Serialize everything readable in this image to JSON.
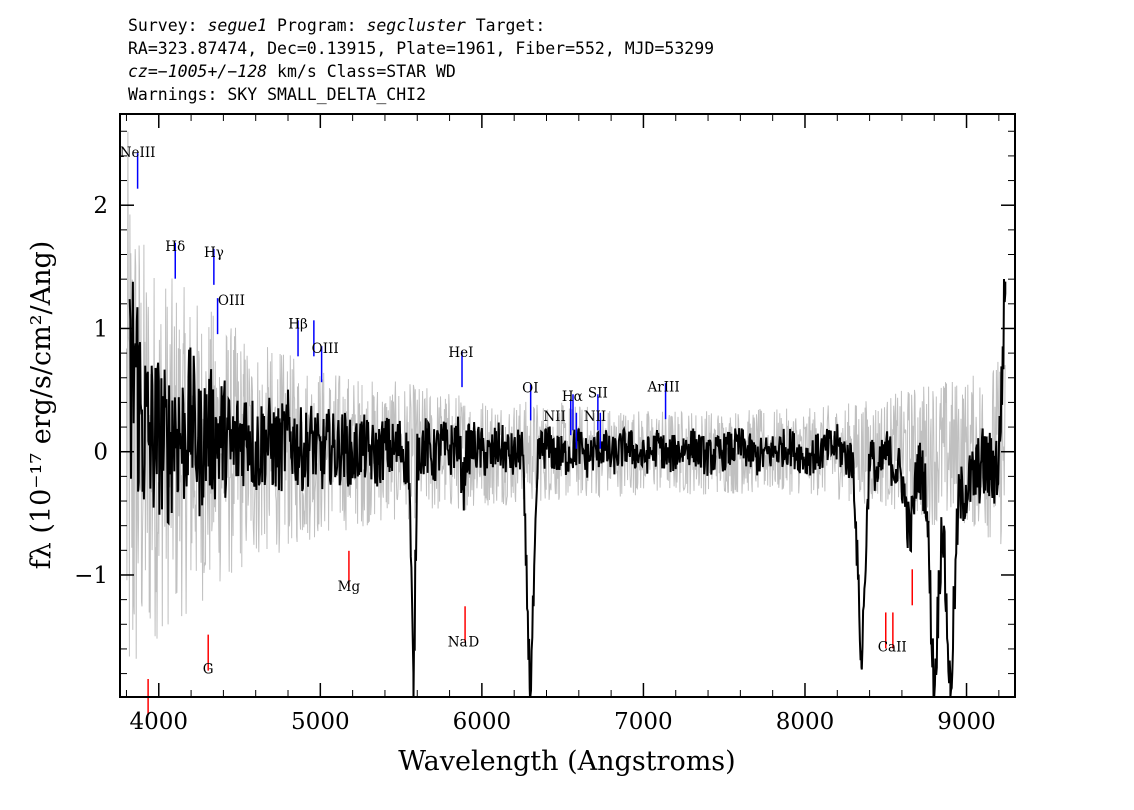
{
  "header": {
    "line1": {
      "survey_label": "Survey: ",
      "survey_value": "segue1",
      "program_label": " Program: ",
      "program_value": "segcluster",
      "target_label": " Target:"
    },
    "line2": "RA=323.87474, Dec=0.13915, Plate=1961, Fiber=552, MJD=53299",
    "line3": {
      "cz_value": "cz=−1005+/−128",
      "cz_unit": " km/s ",
      "class_text": "Class=STAR WD"
    },
    "line4": "Warnings: SKY SMALL_DELTA_CHI2"
  },
  "chart_data": {
    "type": "line",
    "xlabel": "Wavelength (Angstroms)",
    "ylabel": "fλ (10⁻¹⁷ erg/s/cm²/Ang)",
    "xlim": [
      3760,
      9300
    ],
    "ylim": [
      -1.99,
      2.74
    ],
    "x_ticks": [
      4000,
      5000,
      6000,
      7000,
      8000,
      9000
    ],
    "y_ticks": [
      -1,
      0,
      1,
      2
    ],
    "x_tick_labels": [
      "4000",
      "5000",
      "6000",
      "7000",
      "8000",
      "9000"
    ],
    "y_tick_labels": [
      "−1",
      "0",
      "1",
      "2"
    ],
    "grid": false,
    "colors": {
      "flux": "#000000",
      "error": "#c0c0c0",
      "emission": "#0000ff",
      "absorption": "#ff0000"
    },
    "series": [
      {
        "role": "flux",
        "x": [
          3820,
          3850,
          3880,
          3900,
          3950,
          4000,
          4050,
          4100,
          4150,
          4200,
          4250,
          4300,
          4350,
          4400,
          4450,
          4500,
          4550,
          4600,
          4650,
          4700,
          4750,
          4800,
          4850,
          4900,
          4950,
          5000,
          5050,
          5100,
          5150,
          5200,
          5250,
          5300,
          5350,
          5400,
          5450,
          5500,
          5550,
          5577,
          5600,
          5650,
          5700,
          5750,
          5800,
          5850,
          5890,
          5900,
          5950,
          6000,
          6050,
          6100,
          6150,
          6200,
          6250,
          6300,
          6350,
          6400,
          6450,
          6500,
          6550,
          6600,
          6650,
          6700,
          6750,
          6800,
          6850,
          6900,
          6950,
          7000,
          7050,
          7100,
          7150,
          7200,
          7300,
          7400,
          7500,
          7600,
          7700,
          7800,
          7900,
          8000,
          8100,
          8200,
          8300,
          8350,
          8400,
          8450,
          8500,
          8550,
          8600,
          8650,
          8700,
          8750,
          8800,
          8850,
          8900,
          8950,
          9000,
          9050,
          9100,
          9150,
          9200,
          9240
        ],
        "y": [
          0.3,
          0.8,
          0.4,
          0.2,
          0.1,
          0.15,
          0.0,
          0.2,
          0.1,
          0.3,
          0.0,
          0.2,
          0.1,
          0.15,
          0.0,
          0.1,
          0.2,
          0.0,
          0.1,
          0.05,
          0.0,
          0.15,
          0.05,
          0.0,
          0.1,
          -0.05,
          0.05,
          0.0,
          0.05,
          -0.05,
          0.05,
          0.0,
          -0.05,
          0.05,
          0.0,
          0.05,
          -0.1,
          -1.99,
          0.0,
          0.05,
          -0.05,
          0.05,
          0.0,
          0.1,
          -0.3,
          0.0,
          0.05,
          0.0,
          -0.05,
          0.05,
          0.0,
          -0.05,
          0.05,
          -1.99,
          0.0,
          0.05,
          0.0,
          -0.05,
          0.0,
          0.05,
          -0.05,
          0.0,
          0.05,
          -0.05,
          0.0,
          0.05,
          0.0,
          -0.05,
          0.0,
          0.05,
          -0.05,
          0.0,
          0.05,
          -0.05,
          0.0,
          0.05,
          -0.05,
          0.0,
          0.05,
          -0.05,
          0.0,
          0.05,
          -0.1,
          -1.75,
          0.0,
          -0.2,
          0.0,
          -0.1,
          -0.2,
          -0.7,
          -0.1,
          -0.3,
          -1.99,
          -0.5,
          -1.99,
          -0.4,
          -0.3,
          -0.2,
          -0.1,
          -0.15,
          -0.1,
          1.38
        ]
      },
      {
        "role": "error",
        "x": [
          3800,
          3900,
          4000,
          4200,
          4400,
          4600,
          4800,
          5000,
          5300,
          5600,
          6000,
          6500,
          7000,
          7500,
          8000,
          8500,
          8800,
          9000,
          9240
        ],
        "y": [
          2.7,
          1.8,
          1.5,
          1.3,
          1.1,
          0.9,
          0.8,
          0.7,
          0.6,
          0.55,
          0.45,
          0.4,
          0.35,
          0.35,
          0.35,
          0.45,
          0.6,
          0.6,
          0.8
        ]
      }
    ],
    "lines": [
      {
        "label": "NeIII",
        "wavelength": 3869,
        "kind": "emission",
        "y": 2.28
      },
      {
        "label": "Hδ",
        "wavelength": 4102,
        "kind": "emission",
        "y": 1.55
      },
      {
        "label": "Hγ",
        "wavelength": 4341,
        "kind": "emission",
        "y": 1.5
      },
      {
        "label": "OIII",
        "wavelength": 4364,
        "kind": "emission",
        "y": 1.1
      },
      {
        "label": "Hβ",
        "wavelength": 4862,
        "kind": "emission",
        "y": 0.92
      },
      {
        "label": "OIII",
        "wavelength": 4960,
        "kind": "emission",
        "y": 0.92
      },
      {
        "label": "OIII",
        "wavelength": 5008,
        "kind": "emission",
        "y": 0.71
      },
      {
        "label": "HeI",
        "wavelength": 5877,
        "kind": "emission",
        "y": 0.67
      },
      {
        "label": "OI",
        "wavelength": 6302,
        "kind": "emission",
        "y": 0.4
      },
      {
        "label": "NII",
        "wavelength": 6550,
        "kind": "emission",
        "y": 0.28
      },
      {
        "label": "Hα",
        "wavelength": 6564,
        "kind": "emission",
        "y": 0.32
      },
      {
        "label": "NII",
        "wavelength": 6585,
        "kind": "emission",
        "y": 0.17
      },
      {
        "label": "SII",
        "wavelength": 6718,
        "kind": "emission",
        "y": 0.32
      },
      {
        "label": "SII",
        "wavelength": 6733,
        "kind": "emission",
        "y": 0.17
      },
      {
        "label": "ArIII",
        "wavelength": 7137,
        "kind": "emission",
        "y": 0.41
      },
      {
        "label": "CaII",
        "wavelength": 3934,
        "kind": "absorption",
        "y": -1.99
      },
      {
        "label": "G",
        "wavelength": 4306,
        "kind": "absorption",
        "y": -1.63
      },
      {
        "label": "Mg",
        "wavelength": 5177,
        "kind": "absorption",
        "y": -0.95
      },
      {
        "label": "Na",
        "wavelength": 5896,
        "kind": "absorption",
        "y": -1.4
      },
      {
        "label": "CaII",
        "wavelength": 8500,
        "kind": "absorption",
        "y": -1.45
      },
      {
        "label": "CaII",
        "wavelength": 8544,
        "kind": "absorption",
        "y": -1.45
      },
      {
        "label": "CaII",
        "wavelength": 8664,
        "kind": "absorption",
        "y": -1.1
      }
    ],
    "line_labels": [
      {
        "text": "NeIII",
        "wavelength": 3869,
        "y": 2.39
      },
      {
        "text": "Hδ",
        "wavelength": 4102,
        "y": 1.63
      },
      {
        "text": "Hγ",
        "wavelength": 4341,
        "y": 1.58
      },
      {
        "text": "OIII",
        "wavelength": 4450,
        "y": 1.19
      },
      {
        "text": "Hβ",
        "wavelength": 4862,
        "y": 1.0
      },
      {
        "text": "OIII",
        "wavelength": 5030,
        "y": 0.8
      },
      {
        "text": "HeI",
        "wavelength": 5870,
        "y": 0.77
      },
      {
        "text": "OI",
        "wavelength": 6300,
        "y": 0.48
      },
      {
        "text": "NII",
        "wavelength": 6450,
        "y": 0.25
      },
      {
        "text": "Hα",
        "wavelength": 6560,
        "y": 0.41
      },
      {
        "text": "SII",
        "wavelength": 6718,
        "y": 0.44
      },
      {
        "text": "NII",
        "wavelength": 6700,
        "y": 0.25
      },
      {
        "text": "ArIII",
        "wavelength": 7125,
        "y": 0.49
      },
      {
        "text": "Mg",
        "wavelength": 5177,
        "y": -1.13
      },
      {
        "text": "G",
        "wavelength": 4306,
        "y": -1.8
      },
      {
        "text": "Na",
        "wavelength": 5850,
        "y": -1.58
      },
      {
        "text": "D",
        "wavelength": 5950,
        "y": -1.58
      },
      {
        "text": "CaII",
        "wavelength": 8540,
        "y": -1.62
      }
    ]
  }
}
